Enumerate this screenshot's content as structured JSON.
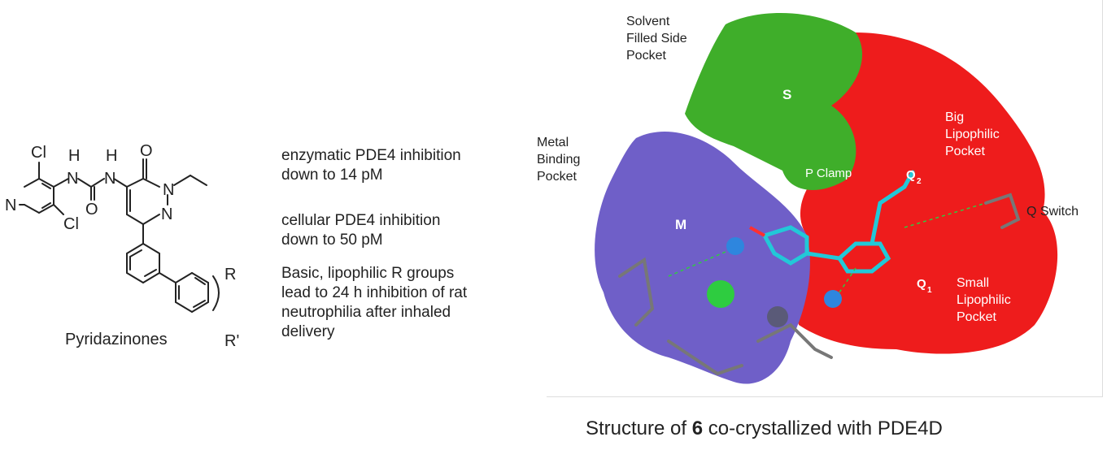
{
  "molecule": {
    "name": "Pyridazinones",
    "atoms": {
      "cl_top": "Cl",
      "cl_bottom": "Cl",
      "n_pyridine": "N",
      "h1": "H",
      "n1": "N",
      "h2": "H",
      "n2": "N",
      "o_carbonyl": "O",
      "o_urea": "O",
      "n_ring1": "N",
      "n_ring2": "N",
      "r": "R",
      "r_prime": "R'"
    }
  },
  "bullets": [
    "enzymatic PDE4 inhibition\ndown to 14 pM",
    "cellular PDE4 inhibition\ndown to 50 pM",
    "Basic, lipophilic R groups\nlead to 24 h inhibition of rat\nneutrophilia after inhaled\ndelivery"
  ],
  "pockets": {
    "solvent": "Solvent\nFilled Side\nPocket",
    "metal": "Metal\nBinding\nPocket",
    "big_lipophilic": "Big\nLipophilic\nPocket",
    "q_switch": "Q Switch",
    "small_lipophilic": "Small\nLipophilic\nPocket",
    "p_clamp": "P Clamp",
    "s": "S",
    "m": "M",
    "q1": "Q",
    "q1_sub": "1",
    "q2": "Q",
    "q2_sub": "2"
  },
  "caption": {
    "prefix": "Structure of ",
    "bold": "6",
    "suffix": " co-crystallized with PDE4D"
  },
  "colors": {
    "green_pocket": "#3fae2a",
    "red_pocket": "#ee1c1c",
    "purple_pocket": "#6f5fc8",
    "ligand": "#22c8d8"
  }
}
